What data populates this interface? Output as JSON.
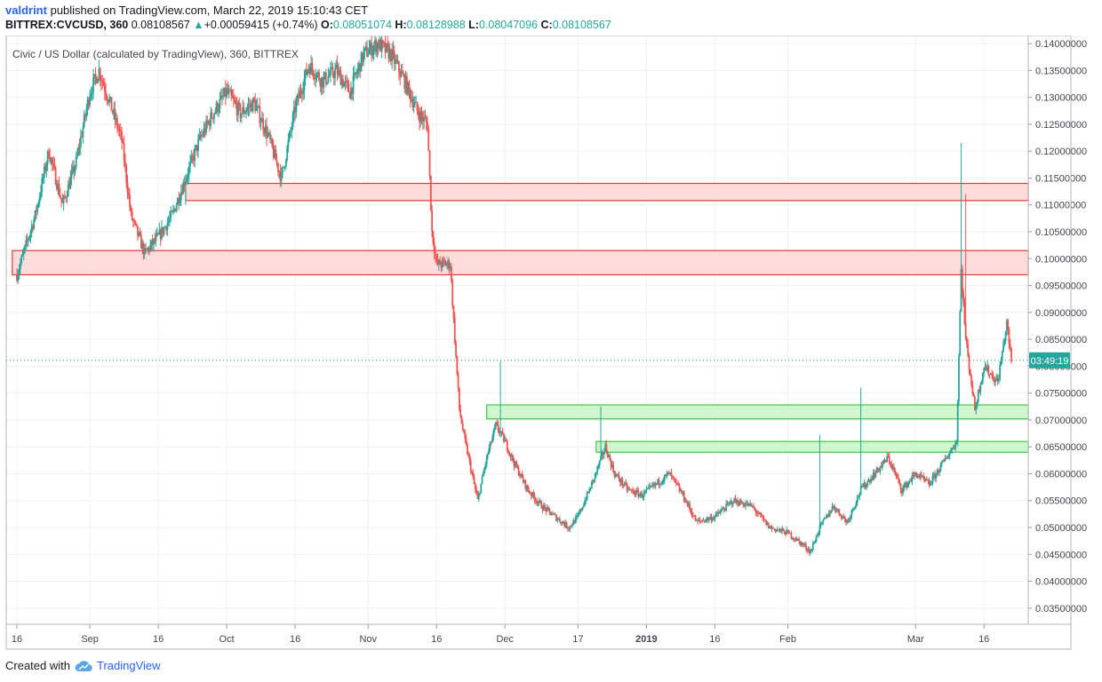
{
  "header": {
    "author": "valdrint",
    "published_text": "published on TradingView.com, March 22, 2019 15:10:43 CET",
    "symbol": "BITTREX:CVCUSD, 360",
    "last": "0.08108567",
    "change_arrow": "▲",
    "change": "+0.00059415 (+0.74%)",
    "o_label": "O:",
    "o_value": "0.08051074",
    "h_label": "H:",
    "h_value": "0.08128988",
    "l_label": "L:",
    "l_value": "0.08047096",
    "c_label": "C:",
    "c_value": "0.08108567"
  },
  "footer": {
    "created_with": "Created with",
    "brand": "TradingView",
    "logo_icon": "tradingview-cloud-icon"
  },
  "colors": {
    "up": "#26a69a",
    "down": "#ef5350",
    "resistance_fill": "#ffd6d6",
    "resistance_stroke": "#e53935",
    "support_fill": "#c8f5c8",
    "support_stroke": "#43c443",
    "grid": "#eef1f5",
    "price_label_bg": "#26a69a"
  },
  "chart_data": {
    "type": "candlestick",
    "title": "Civic / US Dollar (calculated by TradingView), 360, BITTREX",
    "x_tick_labels": [
      "16",
      "Sep",
      "16",
      "Oct",
      "16",
      "Nov",
      "16",
      "Dec",
      "17",
      "2019",
      "16",
      "Feb",
      "Mar",
      "16"
    ],
    "y_tick_labels": [
      "0.14000000",
      "0.13500000",
      "0.13000000",
      "0.12500000",
      "0.12000000",
      "0.11500000",
      "0.11000000",
      "0.10500000",
      "0.10000000",
      "0.09500000",
      "0.09000000",
      "0.08500000",
      "0.08000000",
      "0.07500000",
      "0.07000000",
      "0.06500000",
      "0.06000000",
      "0.05500000",
      "0.05000000",
      "0.04500000",
      "0.04000000",
      "0.03500000"
    ],
    "ylim": [
      0.032,
      0.1415
    ],
    "current_price_label": "03:49:19",
    "current_price": 0.08108567,
    "resistance_zones": [
      {
        "from": "Sep 22",
        "to": "end",
        "low": 0.1108,
        "high": 0.114
      },
      {
        "from": "start",
        "to": "end",
        "low": 0.097,
        "high": 0.1015
      }
    ],
    "support_zones": [
      {
        "from": "Nov 27",
        "to": "end",
        "low": 0.0702,
        "high": 0.0728
      },
      {
        "from": "Dec 21",
        "to": "end",
        "low": 0.064,
        "high": 0.066
      }
    ],
    "price_path": [
      {
        "date": "Aug 16",
        "price": 0.097
      },
      {
        "date": "Aug 20",
        "price": 0.108
      },
      {
        "date": "Aug 23",
        "price": 0.12
      },
      {
        "date": "Aug 26",
        "price": 0.11
      },
      {
        "date": "Aug 29",
        "price": 0.118
      },
      {
        "date": "Sep 1",
        "price": 0.131
      },
      {
        "date": "Sep 3",
        "price": 0.135
      },
      {
        "date": "Sep 5",
        "price": 0.13
      },
      {
        "date": "Sep 8",
        "price": 0.122
      },
      {
        "date": "Sep 10",
        "price": 0.108
      },
      {
        "date": "Sep 13",
        "price": 0.101
      },
      {
        "date": "Sep 16",
        "price": 0.104
      },
      {
        "date": "Sep 19",
        "price": 0.108
      },
      {
        "date": "Sep 22",
        "price": 0.115
      },
      {
        "date": "Sep 25",
        "price": 0.122
      },
      {
        "date": "Sep 28",
        "price": 0.127
      },
      {
        "date": "Oct 1",
        "price": 0.131
      },
      {
        "date": "Oct 4",
        "price": 0.127
      },
      {
        "date": "Oct 7",
        "price": 0.129
      },
      {
        "date": "Oct 10",
        "price": 0.123
      },
      {
        "date": "Oct 13",
        "price": 0.115
      },
      {
        "date": "Oct 16",
        "price": 0.128
      },
      {
        "date": "Oct 19",
        "price": 0.136
      },
      {
        "date": "Oct 22",
        "price": 0.133
      },
      {
        "date": "Oct 25",
        "price": 0.135
      },
      {
        "date": "Oct 28",
        "price": 0.131
      },
      {
        "date": "Oct 31",
        "price": 0.138
      },
      {
        "date": "Nov 3",
        "price": 0.14
      },
      {
        "date": "Nov 6",
        "price": 0.138
      },
      {
        "date": "Nov 9",
        "price": 0.133
      },
      {
        "date": "Nov 12",
        "price": 0.127
      },
      {
        "date": "Nov 14",
        "price": 0.125
      },
      {
        "date": "Nov 15",
        "price": 0.105
      },
      {
        "date": "Nov 16",
        "price": 0.099
      },
      {
        "date": "Nov 19",
        "price": 0.099
      },
      {
        "date": "Nov 20",
        "price": 0.085
      },
      {
        "date": "Nov 21",
        "price": 0.072
      },
      {
        "date": "Nov 22",
        "price": 0.067
      },
      {
        "date": "Nov 25",
        "price": 0.055
      },
      {
        "date": "Nov 27",
        "price": 0.063
      },
      {
        "date": "Nov 29",
        "price": 0.069
      },
      {
        "date": "Dec 1",
        "price": 0.066
      },
      {
        "date": "Dec 3",
        "price": 0.062
      },
      {
        "date": "Dec 6",
        "price": 0.057
      },
      {
        "date": "Dec 9",
        "price": 0.054
      },
      {
        "date": "Dec 12",
        "price": 0.052
      },
      {
        "date": "Dec 15",
        "price": 0.05
      },
      {
        "date": "Dec 17",
        "price": 0.052
      },
      {
        "date": "Dec 20",
        "price": 0.058
      },
      {
        "date": "Dec 23",
        "price": 0.065
      },
      {
        "date": "Dec 25",
        "price": 0.06
      },
      {
        "date": "Dec 28",
        "price": 0.057
      },
      {
        "date": "Dec 31",
        "price": 0.056
      },
      {
        "date": "Jan 3",
        "price": 0.058
      },
      {
        "date": "Jan 6",
        "price": 0.06
      },
      {
        "date": "Jan 9",
        "price": 0.056
      },
      {
        "date": "Jan 12",
        "price": 0.051
      },
      {
        "date": "Jan 16",
        "price": 0.052
      },
      {
        "date": "Jan 20",
        "price": 0.055
      },
      {
        "date": "Jan 24",
        "price": 0.054
      },
      {
        "date": "Jan 28",
        "price": 0.05
      },
      {
        "date": "Feb 1",
        "price": 0.049
      },
      {
        "date": "Feb 4",
        "price": 0.047
      },
      {
        "date": "Feb 6",
        "price": 0.0455
      },
      {
        "date": "Feb 8",
        "price": 0.05
      },
      {
        "date": "Feb 11",
        "price": 0.054
      },
      {
        "date": "Feb 14",
        "price": 0.051
      },
      {
        "date": "Feb 17",
        "price": 0.057
      },
      {
        "date": "Feb 20",
        "price": 0.06
      },
      {
        "date": "Feb 23",
        "price": 0.063
      },
      {
        "date": "Feb 26",
        "price": 0.057
      },
      {
        "date": "Mar 1",
        "price": 0.06
      },
      {
        "date": "Mar 4",
        "price": 0.058
      },
      {
        "date": "Mar 7",
        "price": 0.062
      },
      {
        "date": "Mar 10",
        "price": 0.066
      },
      {
        "date": "Mar 11",
        "price": 0.098
      },
      {
        "date": "Mar 12",
        "price": 0.085
      },
      {
        "date": "Mar 14",
        "price": 0.072
      },
      {
        "date": "Mar 16",
        "price": 0.08
      },
      {
        "date": "Mar 19",
        "price": 0.077
      },
      {
        "date": "Mar 21",
        "price": 0.088
      },
      {
        "date": "Mar 22",
        "price": 0.081
      }
    ],
    "notable_wicks": [
      {
        "date": "Sep 22",
        "low": 0.11
      },
      {
        "date": "Nov 30",
        "high": 0.081
      },
      {
        "date": "Dec 22",
        "high": 0.0725
      },
      {
        "date": "Feb 8",
        "high": 0.0672
      },
      {
        "date": "Feb 17",
        "high": 0.076
      },
      {
        "date": "Mar 11",
        "high": 0.1215
      },
      {
        "date": "Mar 12",
        "high": 0.112
      }
    ]
  }
}
